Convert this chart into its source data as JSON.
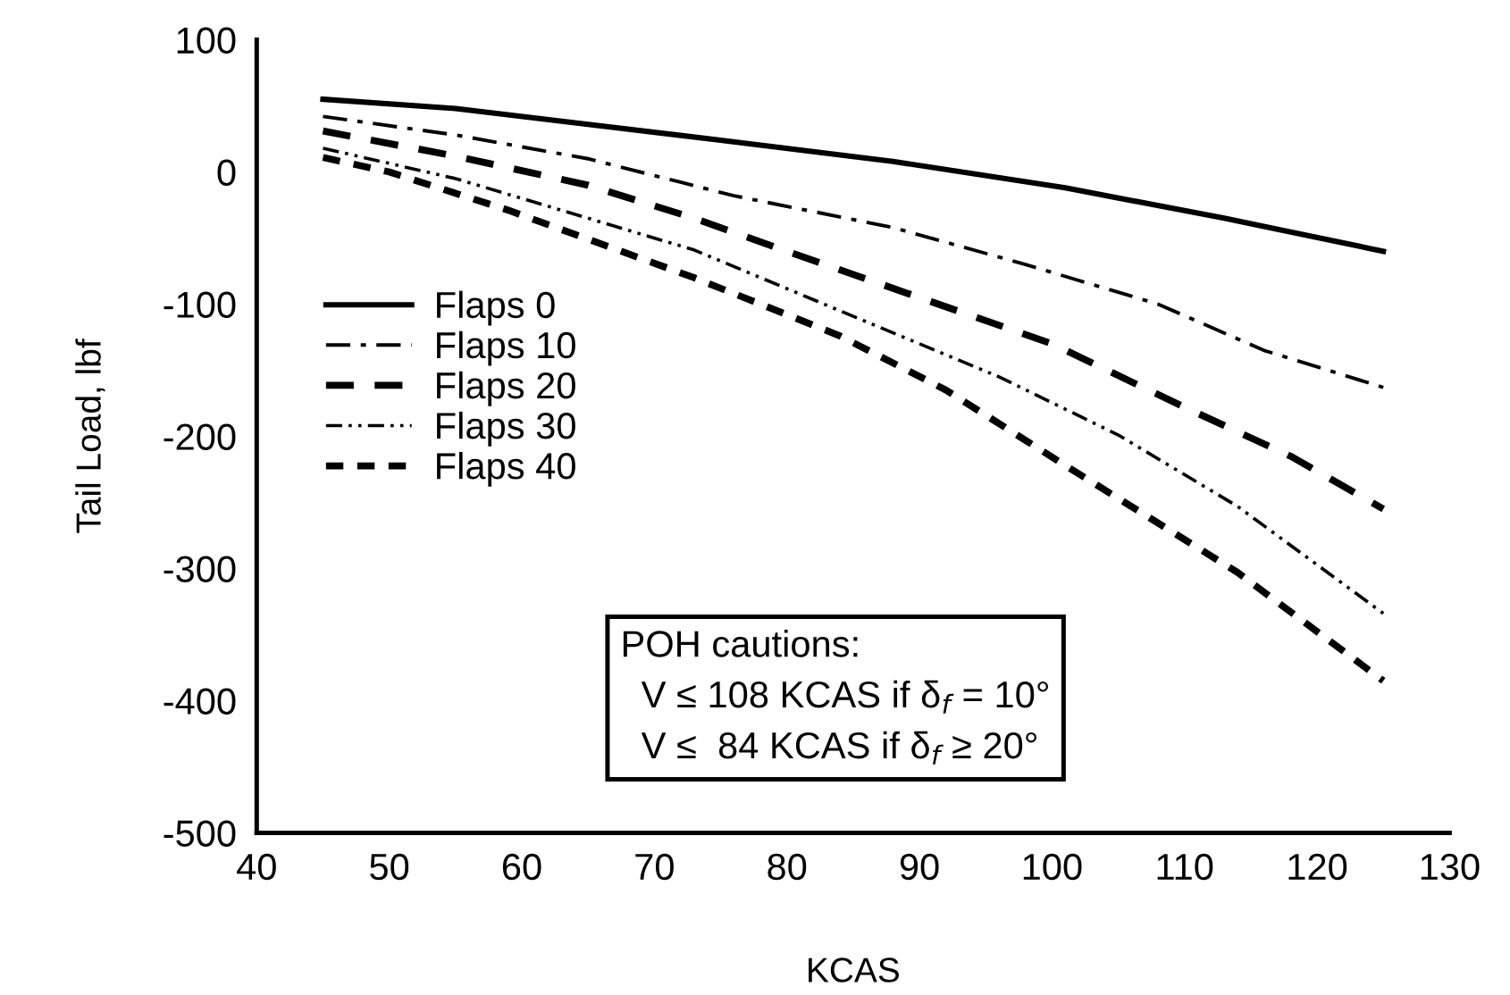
{
  "chart_data": {
    "type": "line",
    "xlabel": "KCAS",
    "ylabel": "Tail Load, lbf",
    "xlim": [
      40,
      130
    ],
    "xticks": [
      40,
      50,
      60,
      70,
      80,
      90,
      100,
      110,
      120,
      130
    ],
    "ylim": [
      -500,
      100
    ],
    "yticks": [
      -500,
      -400,
      -300,
      -200,
      -100,
      0,
      100
    ],
    "grid": false,
    "legend": "left",
    "marker": "none",
    "annotations": [
      "POH cautions:\n  V ≤ 108 KCAS if δ$_{f}$ = 10°\n  V ≤  84 KCAS if δ$_{f}$ ≥ 20°"
    ],
    "series": [
      {
        "name": "Flaps 0",
        "color": "#000000",
        "line_style": "solid",
        "x": [
          45,
          55,
          65,
          75,
          88,
          101,
          113,
          125
        ],
        "values": [
          55,
          48,
          36,
          24,
          8,
          -12,
          -35,
          -60
        ]
      },
      {
        "name": "Flaps 10",
        "color": "#000000",
        "line_style": "dashdot",
        "x": [
          45,
          55,
          65,
          76,
          88,
          98,
          108,
          116,
          125
        ],
        "values": [
          42,
          28,
          10,
          -18,
          -42,
          -70,
          -100,
          -135,
          -163
        ]
      },
      {
        "name": "Flaps 20",
        "color": "#000000",
        "line_style": "dashed",
        "x": [
          45,
          55,
          65,
          73,
          80,
          90,
          100,
          110,
          118,
          125
        ],
        "values": [
          31,
          12,
          -10,
          -35,
          -60,
          -95,
          -130,
          -178,
          -215,
          -255
        ]
      },
      {
        "name": "Flaps 30",
        "color": "#000000",
        "line_style": "dashdotdot",
        "x": [
          45,
          55,
          63,
          73,
          84,
          90,
          96,
          105,
          114,
          125
        ],
        "values": [
          18,
          -5,
          -29,
          -59,
          -105,
          -130,
          -155,
          -199,
          -253,
          -334
        ]
      },
      {
        "name": "Flaps 40",
        "color": "#000000",
        "line_style": "dashed_short",
        "x": [
          45,
          50,
          59,
          73,
          84,
          92,
          101,
          114,
          125
        ],
        "values": [
          11,
          0,
          -29,
          -80,
          -124,
          -165,
          -222,
          -303,
          -385
        ]
      }
    ]
  }
}
